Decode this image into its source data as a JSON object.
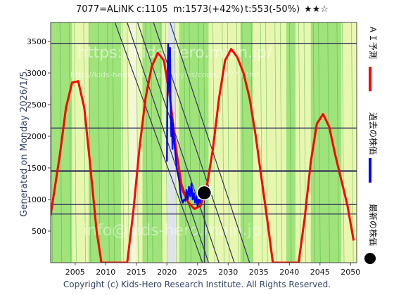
{
  "header": {
    "code_name": "7077=ALiNK",
    "current": "c:1105",
    "max": "m:1573(+42%)",
    "target": "t:553(-50%)",
    "rating": "★★☆"
  },
  "generated_text": "Generated on Monday 2026/1/5.",
  "footer": "Copyright (c) Kids-Hero Research Institute. All Rights Reserved.",
  "watermarks": [
    "https://kids-hero.main.jp/",
    "http://kids-hero.main.jp/analysis/code/7077.html",
    "info@kids-hero.main.jp"
  ],
  "legend": [
    {
      "label": "ＡＩ予測",
      "color": "#ff0000"
    },
    {
      "label": "過去の株価",
      "color": "#0000ff"
    },
    {
      "label": "最新の株価",
      "color": "#000000"
    }
  ],
  "chart_data": {
    "type": "line",
    "xlim": [
      2001,
      2051
    ],
    "ylim": [
      0,
      3800
    ],
    "x_ticks": [
      2005,
      2010,
      2015,
      2020,
      2025,
      2030,
      2035,
      2040,
      2045,
      2050
    ],
    "y_ticks": [
      500,
      1000,
      1500,
      2000,
      2500,
      3000,
      3500
    ],
    "horizontal_lines": [
      3470,
      2130,
      1450,
      920,
      770
    ],
    "latest_point": {
      "x": 2026.1,
      "y": 1105
    },
    "series": [
      {
        "name": "ＡＩ予測",
        "color": "#ff0000",
        "points": [
          [
            2001.0,
            750
          ],
          [
            2002.5,
            1700
          ],
          [
            2003.5,
            2450
          ],
          [
            2004.5,
            2850
          ],
          [
            2005.5,
            2870
          ],
          [
            2006.5,
            2450
          ],
          [
            2007.5,
            1500
          ],
          [
            2008.5,
            500
          ],
          [
            2009.3,
            0
          ],
          [
            2013.5,
            0
          ],
          [
            2014.5,
            800
          ],
          [
            2015.5,
            1800
          ],
          [
            2016.5,
            2600
          ],
          [
            2017.5,
            3100
          ],
          [
            2018.5,
            3320
          ],
          [
            2019.5,
            3200
          ],
          [
            2020.5,
            2600
          ],
          [
            2021.5,
            1800
          ],
          [
            2022.5,
            1150
          ],
          [
            2023.5,
            950
          ],
          [
            2024.5,
            850
          ],
          [
            2025.5,
            900
          ],
          [
            2026.5,
            1200
          ],
          [
            2027.5,
            1800
          ],
          [
            2028.5,
            2600
          ],
          [
            2029.5,
            3200
          ],
          [
            2030.5,
            3380
          ],
          [
            2031.5,
            3250
          ],
          [
            2032.5,
            3000
          ],
          [
            2033.5,
            2600
          ],
          [
            2034.5,
            2000
          ],
          [
            2035.5,
            1300
          ],
          [
            2036.5,
            600
          ],
          [
            2037.3,
            0
          ],
          [
            2041.5,
            0
          ],
          [
            2042.5,
            700
          ],
          [
            2043.5,
            1600
          ],
          [
            2044.5,
            2200
          ],
          [
            2045.5,
            2350
          ],
          [
            2046.5,
            2150
          ],
          [
            2047.5,
            1700
          ],
          [
            2048.5,
            1300
          ],
          [
            2049.5,
            900
          ],
          [
            2050.5,
            350
          ]
        ]
      },
      {
        "name": "過去の株価",
        "color": "#0000ff",
        "points": [
          [
            2020.0,
            1600
          ],
          [
            2020.1,
            3000
          ],
          [
            2020.2,
            3450
          ],
          [
            2020.3,
            3100
          ],
          [
            2020.4,
            2700
          ],
          [
            2020.5,
            3400
          ],
          [
            2020.6,
            2500
          ],
          [
            2020.7,
            2000
          ],
          [
            2020.8,
            2300
          ],
          [
            2020.9,
            1800
          ],
          [
            2021.0,
            2200
          ],
          [
            2021.2,
            1900
          ],
          [
            2021.4,
            1700
          ],
          [
            2021.6,
            1500
          ],
          [
            2021.8,
            1400
          ],
          [
            2022.0,
            1300
          ],
          [
            2022.2,
            1100
          ],
          [
            2022.4,
            1000
          ],
          [
            2022.6,
            950
          ],
          [
            2022.8,
            1000
          ],
          [
            2023.0,
            980
          ],
          [
            2023.2,
            1150
          ],
          [
            2023.4,
            1000
          ],
          [
            2023.6,
            1200
          ],
          [
            2023.8,
            1050
          ],
          [
            2024.0,
            1250
          ],
          [
            2024.2,
            1000
          ],
          [
            2024.4,
            1100
          ],
          [
            2024.6,
            950
          ],
          [
            2024.8,
            1050
          ],
          [
            2025.0,
            900
          ],
          [
            2025.2,
            1000
          ],
          [
            2025.4,
            950
          ],
          [
            2025.6,
            1050
          ],
          [
            2025.8,
            1105
          ]
        ]
      }
    ]
  }
}
